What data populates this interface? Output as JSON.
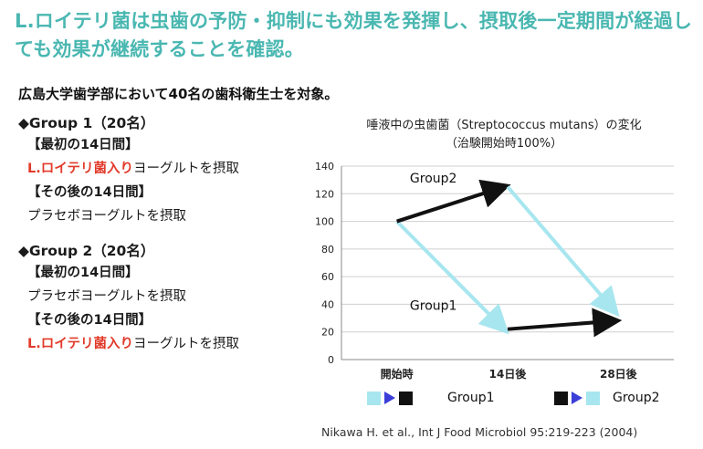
{
  "headline": "L.ロイテリ菌は虫歯の予防・抑制にも効果を発揮し、摂取後一定期間が経過しても効果が継続することを確認。",
  "subject": "広島大学歯学部において40名の歯科衛生士を対象。",
  "groups": [
    {
      "title": "◆Group 1（20名）",
      "phase1_label": "【最初の14日間】",
      "phase1_red": "L.ロイテリ菌入り",
      "phase1_rest": "ヨーグルトを摂取",
      "phase2_label": "【その後の14日間】",
      "phase2_text": "プラセボヨーグルトを摂取"
    },
    {
      "title": "◆Group 2（20名）",
      "phase1_label": "【最初の14日間】",
      "phase1_text": "プラセボヨーグルトを摂取",
      "phase2_label": "【その後の14日間】",
      "phase2_red": "L.ロイテリ菌入り",
      "phase2_rest": "ヨーグルトを摂取"
    }
  ],
  "chart_data": {
    "type": "line",
    "title": "唾液中の虫歯菌（Streptococcus mutans）の変化",
    "subtitle": "（治験開始時100%）",
    "categories": [
      "開始時",
      "14日後",
      "28日後"
    ],
    "ylim": [
      0,
      140
    ],
    "yticks": [
      0,
      20,
      40,
      60,
      80,
      100,
      120,
      140
    ],
    "grid": true,
    "series": [
      {
        "name": "Group1",
        "values": [
          100,
          22,
          28
        ]
      },
      {
        "name": "Group2",
        "values": [
          100,
          125,
          35
        ]
      }
    ],
    "annotations": [
      "Group2",
      "Group1"
    ],
    "legend_placement": "bottom"
  },
  "colors": {
    "headline": "#4ab7b1",
    "highlight_red": "#e23a2a",
    "placebo_cyan": "#a7e6ef",
    "active_black": "#111111",
    "legend_arrow": "#3b3fd8"
  },
  "legend": {
    "group1_label": "Group1",
    "group2_label": "Group2"
  },
  "citation": "Nikawa H. et al., Int J Food Microbiol 95:219-223 (2004)"
}
